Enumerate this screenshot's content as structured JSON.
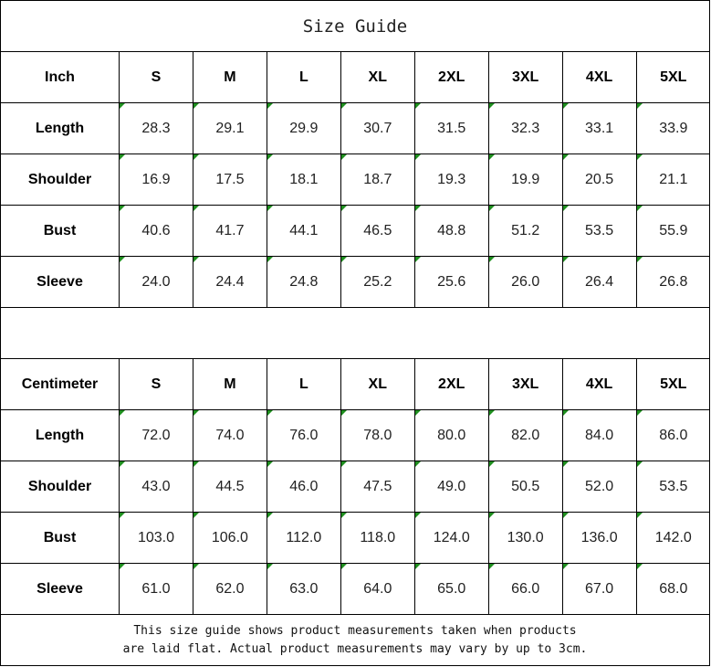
{
  "title": "Size Guide",
  "tables": [
    {
      "unit": "Inch",
      "sizes": [
        "S",
        "M",
        "L",
        "XL",
        "2XL",
        "3XL",
        "4XL",
        "5XL"
      ],
      "rows": [
        {
          "label": "Length",
          "values": [
            "28.3",
            "29.1",
            "29.9",
            "30.7",
            "31.5",
            "32.3",
            "33.1",
            "33.9"
          ]
        },
        {
          "label": "Shoulder",
          "values": [
            "16.9",
            "17.5",
            "18.1",
            "18.7",
            "19.3",
            "19.9",
            "20.5",
            "21.1"
          ]
        },
        {
          "label": "Bust",
          "values": [
            "40.6",
            "41.7",
            "44.1",
            "46.5",
            "48.8",
            "51.2",
            "53.5",
            "55.9"
          ]
        },
        {
          "label": "Sleeve",
          "values": [
            "24.0",
            "24.4",
            "24.8",
            "25.2",
            "25.6",
            "26.0",
            "26.4",
            "26.8"
          ]
        }
      ]
    },
    {
      "unit": "Centimeter",
      "sizes": [
        "S",
        "M",
        "L",
        "XL",
        "2XL",
        "3XL",
        "4XL",
        "5XL"
      ],
      "rows": [
        {
          "label": "Length",
          "values": [
            "72.0",
            "74.0",
            "76.0",
            "78.0",
            "80.0",
            "82.0",
            "84.0",
            "86.0"
          ]
        },
        {
          "label": "Shoulder",
          "values": [
            "43.0",
            "44.5",
            "46.0",
            "47.5",
            "49.0",
            "50.5",
            "52.0",
            "53.5"
          ]
        },
        {
          "label": "Bust",
          "values": [
            "103.0",
            "106.0",
            "112.0",
            "118.0",
            "124.0",
            "130.0",
            "136.0",
            "142.0"
          ]
        },
        {
          "label": "Sleeve",
          "values": [
            "61.0",
            "62.0",
            "63.0",
            "64.0",
            "65.0",
            "66.0",
            "67.0",
            "68.0"
          ]
        }
      ]
    }
  ],
  "note": {
    "line1": "This size guide shows product measurements taken when products",
    "line2": "are laid flat. Actual product measurements may vary by up to 3cm."
  },
  "colors": {
    "error_marker": "#1f8f1f",
    "border": "#000000"
  }
}
